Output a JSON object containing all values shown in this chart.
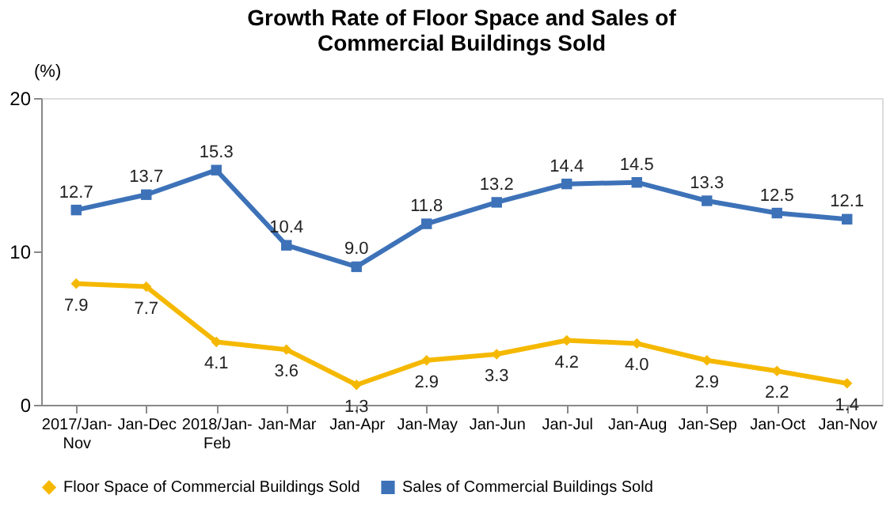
{
  "chart_data": {
    "type": "line",
    "title": "Growth Rate of Floor Space and Sales of Commercial Buildings Sold",
    "ylabel": "(%)",
    "categories": [
      "2017/Jan-Nov",
      "Jan-Dec",
      "2018/Jan-Feb",
      "Jan-Mar",
      "Jan-Apr",
      "Jan-May",
      "Jan-Jun",
      "Jan-Jul",
      "Jan-Aug",
      "Jan-Sep",
      "Jan-Oct",
      "Jan-Nov"
    ],
    "series": [
      {
        "name": "Floor Space of Commercial Buildings Sold",
        "color": "#f5b800",
        "marker": "diamond",
        "values": [
          7.9,
          7.7,
          4.1,
          3.6,
          1.3,
          2.9,
          3.3,
          4.2,
          4.0,
          2.9,
          2.2,
          1.4
        ],
        "value_labels": [
          "7.9",
          "7.7",
          "4.1",
          "3.6",
          "1.3",
          "2.9",
          "3.3",
          "4.2",
          "4.0",
          "2.9",
          "2.2",
          "1.4"
        ]
      },
      {
        "name": "Sales of Commercial Buildings Sold",
        "color": "#3d72b8",
        "marker": "square",
        "values": [
          12.7,
          13.7,
          15.3,
          10.4,
          9.0,
          11.8,
          13.2,
          14.4,
          14.5,
          13.3,
          12.5,
          12.1
        ],
        "value_labels": [
          "12.7",
          "13.7",
          "15.3",
          "10.4",
          "9.0",
          "11.8",
          "13.2",
          "14.4",
          "14.5",
          "13.3",
          "12.5",
          "12.1"
        ]
      }
    ],
    "ylim": [
      0,
      20
    ],
    "yticks": [
      0,
      10,
      20
    ],
    "grid": false,
    "legend": "bottom",
    "line_style": "solid"
  }
}
